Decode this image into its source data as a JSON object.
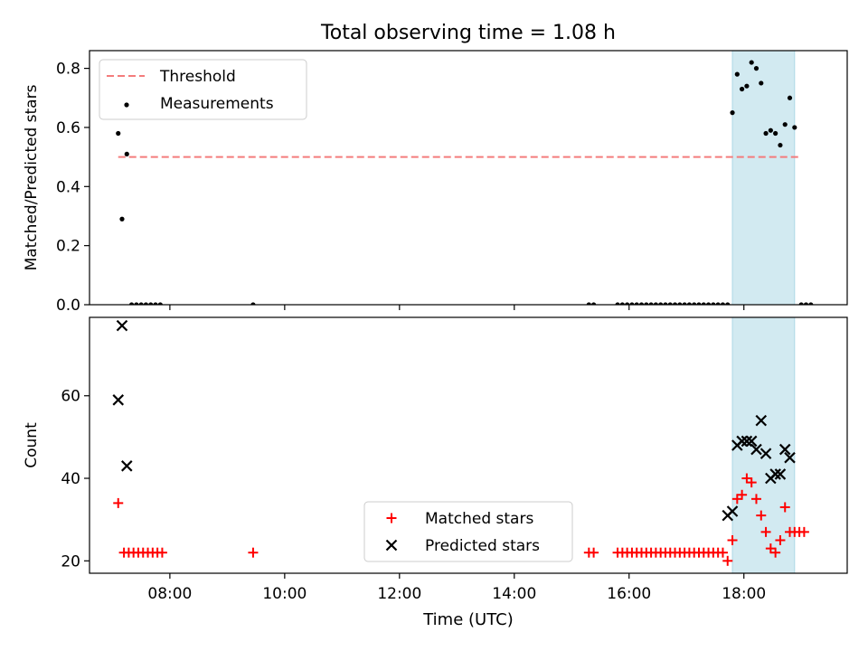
{
  "chart_data": {
    "type": "scatter",
    "title": "Total observing time = 1.08 h",
    "xlabel": "Time (UTC)",
    "x_ticks": [
      "08:00",
      "10:00",
      "12:00",
      "14:00",
      "16:00",
      "18:00"
    ],
    "highlight_span": [
      "17:48",
      "18:53"
    ],
    "colors": {
      "highlight": "#add8e6",
      "threshold": "#f47c7c",
      "measurements": "#000000",
      "matched": "#ff0000",
      "predicted": "#000000"
    },
    "panels": [
      {
        "ylabel": "Matched/Predicted stars",
        "ylim": [
          0,
          0.86
        ],
        "yticks": [
          "0.0",
          "0.2",
          "0.4",
          "0.6",
          "0.8"
        ],
        "yticks_values": [
          0,
          0.2,
          0.4,
          0.6,
          0.8
        ],
        "legend": {
          "placement": "upper-left",
          "entries": [
            "Threshold",
            "Measurements"
          ]
        },
        "threshold": {
          "name": "Threshold",
          "value": 0.5,
          "x_range": [
            "07:06",
            "19:00"
          ]
        },
        "series": [
          {
            "name": "Measurements",
            "points": [
              [
                "07:06",
                0.58
              ],
              [
                "07:10",
                0.29
              ],
              [
                "07:15",
                0.51
              ],
              [
                "07:20",
                0.0
              ],
              [
                "07:25",
                0.0
              ],
              [
                "07:30",
                0.0
              ],
              [
                "07:35",
                0.0
              ],
              [
                "07:40",
                0.0
              ],
              [
                "07:45",
                0.0
              ],
              [
                "07:50",
                0.0
              ],
              [
                "09:27",
                0.0
              ],
              [
                "15:18",
                0.0
              ],
              [
                "15:23",
                0.0
              ],
              [
                "15:48",
                0.0
              ],
              [
                "15:53",
                0.0
              ],
              [
                "15:58",
                0.0
              ],
              [
                "16:03",
                0.0
              ],
              [
                "16:08",
                0.0
              ],
              [
                "16:13",
                0.0
              ],
              [
                "16:18",
                0.0
              ],
              [
                "16:23",
                0.0
              ],
              [
                "16:28",
                0.0
              ],
              [
                "16:33",
                0.0
              ],
              [
                "16:38",
                0.0
              ],
              [
                "16:43",
                0.0
              ],
              [
                "16:48",
                0.0
              ],
              [
                "16:53",
                0.0
              ],
              [
                "16:58",
                0.0
              ],
              [
                "17:03",
                0.0
              ],
              [
                "17:08",
                0.0
              ],
              [
                "17:13",
                0.0
              ],
              [
                "17:18",
                0.0
              ],
              [
                "17:23",
                0.0
              ],
              [
                "17:28",
                0.0
              ],
              [
                "17:33",
                0.0
              ],
              [
                "17:38",
                0.0
              ],
              [
                "17:43",
                0.0
              ],
              [
                "17:48",
                0.65
              ],
              [
                "17:53",
                0.78
              ],
              [
                "17:58",
                0.73
              ],
              [
                "18:03",
                0.74
              ],
              [
                "18:08",
                0.82
              ],
              [
                "18:13",
                0.8
              ],
              [
                "18:18",
                0.75
              ],
              [
                "18:23",
                0.58
              ],
              [
                "18:28",
                0.59
              ],
              [
                "18:33",
                0.58
              ],
              [
                "18:38",
                0.54
              ],
              [
                "18:43",
                0.61
              ],
              [
                "18:48",
                0.7
              ],
              [
                "18:53",
                0.6
              ],
              [
                "19:00",
                0.0
              ],
              [
                "19:05",
                0.0
              ],
              [
                "19:10",
                0.0
              ]
            ]
          }
        ]
      },
      {
        "ylabel": "Count",
        "ylim": [
          17,
          79
        ],
        "yticks": [
          "20",
          "40",
          "60"
        ],
        "yticks_values": [
          20,
          40,
          60
        ],
        "legend": {
          "placement": "lower-center",
          "entries": [
            "Matched stars",
            "Predicted stars"
          ]
        },
        "series": [
          {
            "name": "Matched stars",
            "points": [
              [
                "07:06",
                34
              ],
              [
                "07:12",
                22
              ],
              [
                "07:17",
                22
              ],
              [
                "07:22",
                22
              ],
              [
                "07:27",
                22
              ],
              [
                "07:32",
                22
              ],
              [
                "07:37",
                22
              ],
              [
                "07:42",
                22
              ],
              [
                "07:47",
                22
              ],
              [
                "07:52",
                22
              ],
              [
                "09:27",
                22
              ],
              [
                "15:18",
                22
              ],
              [
                "15:23",
                22
              ],
              [
                "15:48",
                22
              ],
              [
                "15:53",
                22
              ],
              [
                "15:58",
                22
              ],
              [
                "16:03",
                22
              ],
              [
                "16:08",
                22
              ],
              [
                "16:13",
                22
              ],
              [
                "16:18",
                22
              ],
              [
                "16:23",
                22
              ],
              [
                "16:28",
                22
              ],
              [
                "16:33",
                22
              ],
              [
                "16:38",
                22
              ],
              [
                "16:43",
                22
              ],
              [
                "16:48",
                22
              ],
              [
                "16:53",
                22
              ],
              [
                "16:58",
                22
              ],
              [
                "17:03",
                22
              ],
              [
                "17:08",
                22
              ],
              [
                "17:13",
                22
              ],
              [
                "17:18",
                22
              ],
              [
                "17:23",
                22
              ],
              [
                "17:28",
                22
              ],
              [
                "17:33",
                22
              ],
              [
                "17:38",
                22
              ],
              [
                "17:43",
                20
              ],
              [
                "17:48",
                25
              ],
              [
                "17:53",
                35
              ],
              [
                "17:58",
                36
              ],
              [
                "18:03",
                40
              ],
              [
                "18:08",
                39
              ],
              [
                "18:13",
                35
              ],
              [
                "18:18",
                31
              ],
              [
                "18:23",
                27
              ],
              [
                "18:28",
                23
              ],
              [
                "18:33",
                22
              ],
              [
                "18:38",
                25
              ],
              [
                "18:43",
                33
              ],
              [
                "18:48",
                27
              ],
              [
                "18:53",
                27
              ],
              [
                "18:58",
                27
              ],
              [
                "19:03",
                27
              ]
            ]
          },
          {
            "name": "Predicted stars",
            "points": [
              [
                "07:06",
                59
              ],
              [
                "07:10",
                77
              ],
              [
                "07:15",
                43
              ],
              [
                "17:43",
                31
              ],
              [
                "17:48",
                32
              ],
              [
                "17:53",
                48
              ],
              [
                "17:58",
                49
              ],
              [
                "18:03",
                49
              ],
              [
                "18:08",
                49
              ],
              [
                "18:13",
                47
              ],
              [
                "18:18",
                54
              ],
              [
                "18:23",
                46
              ],
              [
                "18:28",
                40
              ],
              [
                "18:33",
                41
              ],
              [
                "18:38",
                41
              ],
              [
                "18:43",
                47
              ],
              [
                "18:48",
                45
              ]
            ]
          }
        ]
      }
    ]
  }
}
